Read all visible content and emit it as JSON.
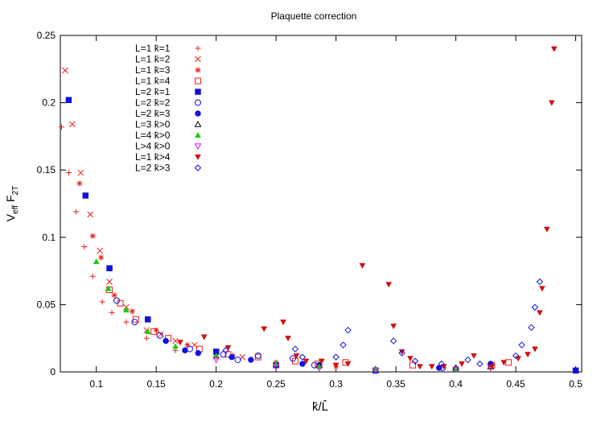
{
  "chart_data": {
    "type": "scatter",
    "title": "Plaquette correction",
    "xlabel": "k̄/L̂",
    "ylabel_main": "V",
    "ylabel_sub1": "eff",
    "ylabel_mid": " F",
    "ylabel_sub2": "2T",
    "xlim": [
      0.07,
      0.505
    ],
    "ylim": [
      0,
      0.25
    ],
    "x_ticks": [
      0.1,
      0.15,
      0.2,
      0.25,
      0.3,
      0.35,
      0.4,
      0.45,
      0.5
    ],
    "x_tick_labels": [
      "0.1",
      "0.15",
      "0.2",
      "0.25",
      "0.3",
      "0.35",
      "0.4",
      "0.45",
      "0.5"
    ],
    "y_ticks": [
      0,
      0.05,
      0.1,
      0.15,
      0.2,
      0.25
    ],
    "y_tick_labels": [
      "0",
      "0.05",
      "0.1",
      "0.15",
      "0.2",
      "0.25"
    ],
    "grid": false,
    "legend_position": "top-left",
    "series": [
      {
        "name": "L=1 k̄=1",
        "marker": "plus",
        "color": "#e8211d",
        "points": [
          [
            0.071,
            0.182
          ],
          [
            0.077,
            0.148
          ],
          [
            0.083,
            0.119
          ],
          [
            0.09,
            0.093
          ],
          [
            0.097,
            0.071
          ],
          [
            0.105,
            0.052
          ],
          [
            0.113,
            0.044
          ],
          [
            0.125,
            0.037
          ],
          [
            0.142,
            0.025
          ],
          [
            0.166,
            0.016
          ],
          [
            0.2,
            0.011
          ],
          [
            0.25,
            0.006
          ],
          [
            0.333,
            0.002
          ]
        ]
      },
      {
        "name": "L=1 k̄=2",
        "marker": "x",
        "color": "#e8211d",
        "points": [
          [
            0.074,
            0.224
          ],
          [
            0.08,
            0.184
          ],
          [
            0.087,
            0.148
          ],
          [
            0.095,
            0.117
          ],
          [
            0.103,
            0.09
          ],
          [
            0.111,
            0.067
          ],
          [
            0.125,
            0.048
          ],
          [
            0.142,
            0.031
          ],
          [
            0.154,
            0.028
          ],
          [
            0.166,
            0.023
          ],
          [
            0.182,
            0.02
          ],
          [
            0.2,
            0.015
          ],
          [
            0.222,
            0.011
          ]
        ]
      },
      {
        "name": "L=1 k̄=3",
        "marker": "star",
        "color": "#e8211d",
        "points": [
          [
            0.086,
            0.14
          ],
          [
            0.097,
            0.101
          ],
          [
            0.104,
            0.085
          ],
          [
            0.115,
            0.057
          ],
          [
            0.13,
            0.045
          ],
          [
            0.15,
            0.031
          ],
          [
            0.176,
            0.02
          ],
          [
            0.214,
            0.012
          ],
          [
            0.25,
            0.007
          ],
          [
            0.3,
            0.004
          ]
        ]
      },
      {
        "name": "L=1 k̄=4",
        "marker": "square-open",
        "color": "#e8211d",
        "points": [
          [
            0.111,
            0.061
          ],
          [
            0.12,
            0.051
          ],
          [
            0.133,
            0.039
          ],
          [
            0.148,
            0.03
          ],
          [
            0.16,
            0.025
          ],
          [
            0.186,
            0.017
          ],
          [
            0.21,
            0.013
          ],
          [
            0.235,
            0.011
          ],
          [
            0.266,
            0.008
          ],
          [
            0.285,
            0.006
          ],
          [
            0.308,
            0.007
          ],
          [
            0.364,
            0.005
          ],
          [
            0.43,
            0.005
          ],
          [
            0.444,
            0.007
          ]
        ]
      },
      {
        "name": "L=2 k̄=1",
        "marker": "square-filled",
        "color": "#1010e0",
        "points": [
          [
            0.077,
            0.202
          ],
          [
            0.091,
            0.131
          ],
          [
            0.111,
            0.077
          ],
          [
            0.143,
            0.039
          ],
          [
            0.2,
            0.015
          ],
          [
            0.25,
            0.005
          ],
          [
            0.333,
            0.001
          ],
          [
            0.5,
            0.001
          ]
        ]
      },
      {
        "name": "L=2 k̄=2",
        "marker": "circle-open",
        "color": "#1010e0",
        "points": [
          [
            0.117,
            0.053
          ],
          [
            0.132,
            0.037
          ],
          [
            0.153,
            0.027
          ],
          [
            0.178,
            0.017
          ],
          [
            0.206,
            0.013
          ],
          [
            0.218,
            0.009
          ],
          [
            0.235,
            0.012
          ],
          [
            0.264,
            0.01
          ],
          [
            0.282,
            0.005
          ],
          [
            0.389,
            0.003
          ],
          [
            0.4,
            0.002
          ]
        ]
      },
      {
        "name": "L=2 k̄=3",
        "marker": "circle-filled",
        "color": "#1010e0",
        "points": [
          [
            0.158,
            0.023
          ],
          [
            0.174,
            0.016
          ],
          [
            0.185,
            0.014
          ],
          [
            0.213,
            0.011
          ],
          [
            0.229,
            0.009
          ],
          [
            0.272,
            0.006
          ],
          [
            0.286,
            0.005
          ],
          [
            0.386,
            0.003
          ],
          [
            0.429,
            0.006
          ]
        ]
      },
      {
        "name": "L=3 k̄>0",
        "marker": "triangle-open",
        "color": "#000000",
        "points": [
          [
            0.2,
            0.012
          ],
          [
            0.25,
            0.006
          ],
          [
            0.286,
            0.005
          ],
          [
            0.333,
            0.002
          ],
          [
            0.4,
            0.003
          ],
          [
            0.429,
            0.004
          ]
        ]
      },
      {
        "name": "L=4 k̄>0",
        "marker": "triangle-filled",
        "color": "#10d010",
        "points": [
          [
            0.1,
            0.082
          ],
          [
            0.11,
            0.062
          ],
          [
            0.125,
            0.046
          ],
          [
            0.143,
            0.03
          ],
          [
            0.166,
            0.019
          ],
          [
            0.2,
            0.012
          ],
          [
            0.25,
            0.006
          ],
          [
            0.286,
            0.004
          ],
          [
            0.333,
            0.002
          ],
          [
            0.4,
            0.002
          ]
        ]
      },
      {
        "name": "L>4 k̄>0",
        "marker": "triangle-down-open",
        "color": "#e010e0",
        "points": [
          [
            0.2,
            0.009
          ],
          [
            0.25,
            0.004
          ],
          [
            0.286,
            0.003
          ],
          [
            0.333,
            0.001
          ],
          [
            0.4,
            0.002
          ],
          [
            0.429,
            0.003
          ]
        ]
      },
      {
        "name": "L=1 k̄>4",
        "marker": "triangle-down-filled",
        "color": "#d01010",
        "points": [
          [
            0.17,
            0.022
          ],
          [
            0.19,
            0.026
          ],
          [
            0.21,
            0.018
          ],
          [
            0.24,
            0.032
          ],
          [
            0.256,
            0.037
          ],
          [
            0.26,
            0.025
          ],
          [
            0.267,
            0.012
          ],
          [
            0.275,
            0.008
          ],
          [
            0.288,
            0.008
          ],
          [
            0.3,
            0.005
          ],
          [
            0.31,
            0.006
          ],
          [
            0.322,
            0.079
          ],
          [
            0.344,
            0.065
          ],
          [
            0.348,
            0.034
          ],
          [
            0.355,
            0.015
          ],
          [
            0.362,
            0.01
          ],
          [
            0.37,
            0.004
          ],
          [
            0.38,
            0.004
          ],
          [
            0.39,
            0.004
          ],
          [
            0.405,
            0.006
          ],
          [
            0.415,
            0.012
          ],
          [
            0.43,
            0.004
          ],
          [
            0.44,
            0.007
          ],
          [
            0.452,
            0.01
          ],
          [
            0.46,
            0.013
          ],
          [
            0.466,
            0.017
          ],
          [
            0.47,
            0.044
          ],
          [
            0.472,
            0.062
          ],
          [
            0.476,
            0.106
          ],
          [
            0.48,
            0.2
          ],
          [
            0.482,
            0.24
          ]
        ]
      },
      {
        "name": "L=2 k̄>3",
        "marker": "diamond-open",
        "color": "#1010e0",
        "points": [
          [
            0.208,
            0.016
          ],
          [
            0.266,
            0.017
          ],
          [
            0.272,
            0.011
          ],
          [
            0.3,
            0.011
          ],
          [
            0.306,
            0.02
          ],
          [
            0.31,
            0.031
          ],
          [
            0.348,
            0.023
          ],
          [
            0.355,
            0.014
          ],
          [
            0.366,
            0.008
          ],
          [
            0.388,
            0.006
          ],
          [
            0.41,
            0.009
          ],
          [
            0.42,
            0.006
          ],
          [
            0.45,
            0.012
          ],
          [
            0.455,
            0.02
          ],
          [
            0.463,
            0.033
          ],
          [
            0.466,
            0.048
          ],
          [
            0.47,
            0.067
          ]
        ]
      }
    ]
  }
}
